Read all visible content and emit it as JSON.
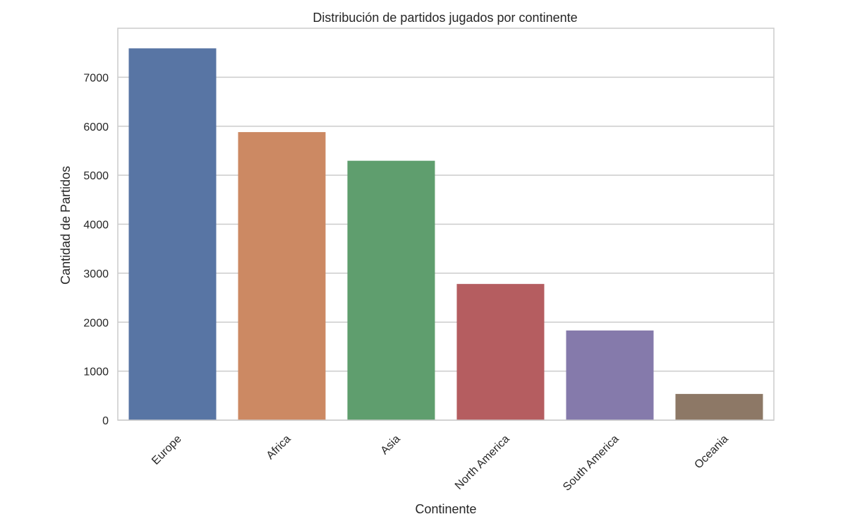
{
  "chart_data": {
    "type": "bar",
    "title": "Distribución de partidos jugados por continente",
    "xlabel": "Continente",
    "ylabel": "Cantidad de Partidos",
    "categories": [
      "Europe",
      "Africa",
      "Asia",
      "North America",
      "South America",
      "Oceania"
    ],
    "values": [
      7590,
      5880,
      5295,
      2780,
      1830,
      535
    ],
    "colors": [
      "#5875a4",
      "#cc8963",
      "#5f9e6e",
      "#b55d60",
      "#857aab",
      "#8d7866"
    ],
    "ylim": [
      0,
      8000
    ],
    "yticks": [
      0,
      1000,
      2000,
      3000,
      4000,
      5000,
      6000,
      7000
    ],
    "grid": true,
    "grid_axis": "y"
  }
}
